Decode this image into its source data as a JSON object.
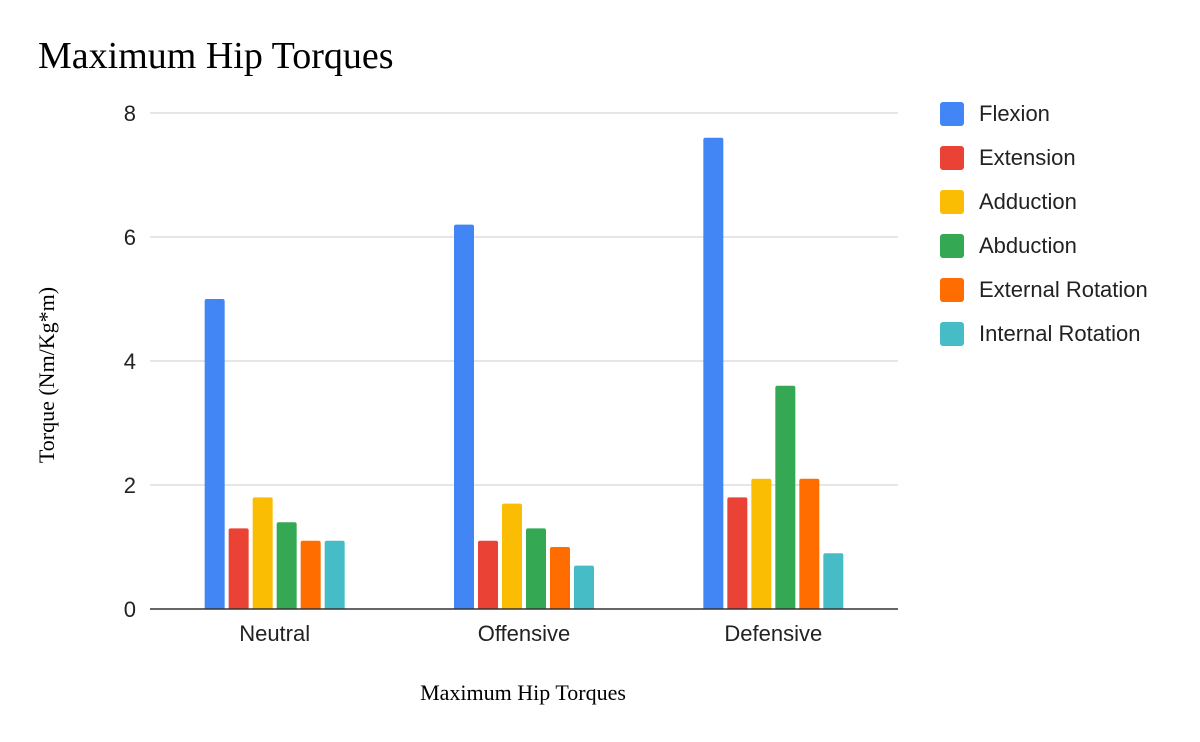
{
  "chart_data": {
    "type": "bar",
    "title": "Maximum Hip Torques",
    "xlabel": "Maximum Hip Torques",
    "ylabel": "Torque (Nm/Kg*m)",
    "categories": [
      "Neutral",
      "Offensive",
      "Defensive"
    ],
    "ylim": [
      0,
      8
    ],
    "yticks": [
      0,
      2,
      4,
      6,
      8
    ],
    "grid": true,
    "legend_position": "right",
    "series": [
      {
        "name": "Flexion",
        "color": "#4285f4",
        "values": [
          5.0,
          6.2,
          7.6
        ]
      },
      {
        "name": "Extension",
        "color": "#ea4335",
        "values": [
          1.3,
          1.1,
          1.8
        ]
      },
      {
        "name": "Adduction",
        "color": "#fbbc04",
        "values": [
          1.8,
          1.7,
          2.1
        ]
      },
      {
        "name": "Abduction",
        "color": "#34a853",
        "values": [
          1.4,
          1.3,
          3.6
        ]
      },
      {
        "name": "External Rotation",
        "color": "#ff6d01",
        "values": [
          1.1,
          1.0,
          2.1
        ]
      },
      {
        "name": "Internal Rotation",
        "color": "#46bdc6",
        "values": [
          1.1,
          0.7,
          0.9
        ]
      }
    ]
  }
}
